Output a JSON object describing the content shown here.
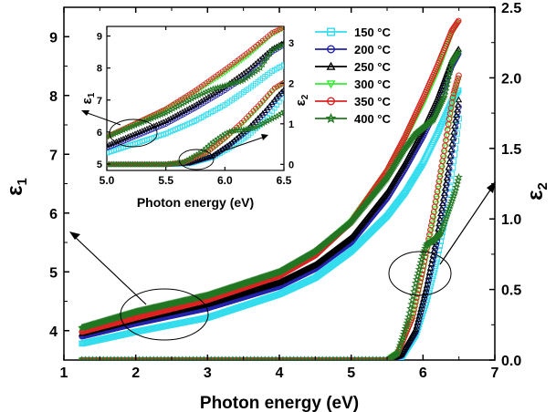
{
  "chart_data": {
    "type": "scatter",
    "main": {
      "xlabel": "Photon energy (eV)",
      "ylabel_left": "ε",
      "ylabel_left_sub": "1",
      "ylabel_right": "ε",
      "ylabel_right_sub": "2",
      "xlim": [
        1,
        7
      ],
      "ylim_left": [
        3.5,
        9.5
      ],
      "ylim_right": [
        0,
        2.5
      ],
      "xticks": [
        "1",
        "2",
        "3",
        "4",
        "5",
        "6",
        "7"
      ],
      "yticks_left": [
        "4",
        "5",
        "6",
        "7",
        "8",
        "9"
      ],
      "yticks_right": [
        "0.0",
        "0.5",
        "1.0",
        "1.5",
        "2.0",
        "2.5"
      ],
      "series": [
        {
          "name": "150 °C",
          "color": "#33ddee",
          "marker": "square",
          "e1": [
            [
              1.25,
              3.78
            ],
            [
              2,
              3.98
            ],
            [
              3,
              4.22
            ],
            [
              4,
              4.62
            ],
            [
              4.5,
              4.9
            ],
            [
              5,
              5.35
            ],
            [
              5.5,
              5.95
            ],
            [
              5.75,
              6.35
            ],
            [
              6,
              6.85
            ],
            [
              6.2,
              7.35
            ],
            [
              6.4,
              7.9
            ],
            [
              6.5,
              8.1
            ]
          ],
          "e2": [
            [
              1.25,
              0
            ],
            [
              5.5,
              0
            ],
            [
              5.7,
              0.02
            ],
            [
              5.9,
              0.18
            ],
            [
              6.05,
              0.42
            ],
            [
              6.2,
              0.72
            ],
            [
              6.35,
              1.12
            ],
            [
              6.45,
              1.5
            ],
            [
              6.5,
              1.72
            ]
          ]
        },
        {
          "name": "200 °C",
          "color": "#2222aa",
          "marker": "circle",
          "e1": [
            [
              1.25,
              3.9
            ],
            [
              2,
              4.12
            ],
            [
              3,
              4.38
            ],
            [
              4,
              4.75
            ],
            [
              4.5,
              5.05
            ],
            [
              5,
              5.5
            ],
            [
              5.5,
              6.25
            ],
            [
              5.75,
              6.75
            ],
            [
              6,
              7.3
            ],
            [
              6.2,
              7.8
            ],
            [
              6.4,
              8.5
            ],
            [
              6.5,
              8.72
            ]
          ],
          "e2": [
            [
              1.25,
              0
            ],
            [
              5.5,
              0
            ],
            [
              5.7,
              0.03
            ],
            [
              5.9,
              0.2
            ],
            [
              6.05,
              0.5
            ],
            [
              6.2,
              0.85
            ],
            [
              6.35,
              1.3
            ],
            [
              6.45,
              1.65
            ],
            [
              6.5,
              1.8
            ]
          ]
        },
        {
          "name": "250 °C",
          "color": "#000000",
          "marker": "triangle",
          "e1": [
            [
              1.25,
              3.95
            ],
            [
              2,
              4.18
            ],
            [
              3,
              4.45
            ],
            [
              4,
              4.82
            ],
            [
              4.5,
              5.12
            ],
            [
              5,
              5.58
            ],
            [
              5.5,
              6.35
            ],
            [
              5.75,
              6.85
            ],
            [
              6,
              7.42
            ],
            [
              6.2,
              7.95
            ],
            [
              6.4,
              8.6
            ],
            [
              6.5,
              8.8
            ]
          ],
          "e2": [
            [
              1.25,
              0
            ],
            [
              5.5,
              0
            ],
            [
              5.7,
              0.04
            ],
            [
              5.9,
              0.22
            ],
            [
              6.05,
              0.52
            ],
            [
              6.2,
              0.9
            ],
            [
              6.35,
              1.35
            ],
            [
              6.45,
              1.7
            ],
            [
              6.5,
              1.85
            ]
          ]
        },
        {
          "name": "300 °C",
          "color": "#33ee33",
          "marker": "triangle-down",
          "e1": [
            [
              1.25,
              4.02
            ],
            [
              2,
              4.28
            ],
            [
              3,
              4.55
            ],
            [
              4,
              4.95
            ],
            [
              4.5,
              5.3
            ],
            [
              5,
              5.85
            ],
            [
              5.5,
              6.7
            ],
            [
              5.75,
              7.25
            ],
            [
              6,
              7.85
            ],
            [
              6.2,
              8.4
            ],
            [
              6.4,
              9.05
            ],
            [
              6.5,
              9.25
            ]
          ],
          "e2": [
            [
              1.25,
              0
            ],
            [
              5.5,
              0
            ],
            [
              5.65,
              0.05
            ],
            [
              5.85,
              0.28
            ],
            [
              6,
              0.62
            ],
            [
              6.15,
              1
            ],
            [
              6.3,
              1.45
            ],
            [
              6.42,
              1.85
            ],
            [
              6.5,
              2.0
            ]
          ]
        },
        {
          "name": "350 °C",
          "color": "#dd2222",
          "marker": "circle",
          "e1": [
            [
              1.25,
              3.98
            ],
            [
              2,
              4.22
            ],
            [
              3,
              4.52
            ],
            [
              4,
              4.93
            ],
            [
              4.5,
              5.28
            ],
            [
              5,
              5.85
            ],
            [
              5.5,
              6.72
            ],
            [
              5.75,
              7.3
            ],
            [
              6,
              7.95
            ],
            [
              6.2,
              8.5
            ],
            [
              6.4,
              9.1
            ],
            [
              6.5,
              9.28
            ]
          ],
          "e2": [
            [
              1.25,
              0
            ],
            [
              5.5,
              0
            ],
            [
              5.65,
              0.05
            ],
            [
              5.85,
              0.3
            ],
            [
              6,
              0.65
            ],
            [
              6.15,
              1.05
            ],
            [
              6.3,
              1.5
            ],
            [
              6.42,
              1.88
            ],
            [
              6.5,
              2.02
            ]
          ]
        },
        {
          "name": "400 °C",
          "color": "#227722",
          "marker": "star",
          "e1": [
            [
              1.25,
              4.05
            ],
            [
              2,
              4.32
            ],
            [
              3,
              4.6
            ],
            [
              4,
              5.0
            ],
            [
              4.5,
              5.35
            ],
            [
              5,
              5.85
            ],
            [
              5.5,
              6.6
            ],
            [
              5.75,
              7.1
            ],
            [
              5.9,
              7.35
            ],
            [
              6.0,
              7.45
            ],
            [
              6.15,
              7.6
            ],
            [
              6.3,
              8.0
            ],
            [
              6.4,
              8.55
            ],
            [
              6.5,
              8.75
            ]
          ],
          "e2": [
            [
              1.25,
              0
            ],
            [
              5.5,
              0
            ],
            [
              5.65,
              0.05
            ],
            [
              5.8,
              0.3
            ],
            [
              5.9,
              0.55
            ],
            [
              6.0,
              0.75
            ],
            [
              6.05,
              0.82
            ],
            [
              6.15,
              0.85
            ],
            [
              6.25,
              0.9
            ],
            [
              6.35,
              1.05
            ],
            [
              6.45,
              1.2
            ],
            [
              6.5,
              1.3
            ]
          ]
        }
      ]
    },
    "inset": {
      "xlabel": "Photon energy (eV)",
      "ylabel_left": "ε",
      "ylabel_left_sub": "1",
      "ylabel_right": "ε",
      "ylabel_right_sub": "2",
      "xlim": [
        5.0,
        6.5
      ],
      "ylim_left": [
        4.8,
        9.3
      ],
      "ylim_right": [
        -0.15,
        3.4
      ],
      "xticks": [
        "5.0",
        "5.5",
        "6.0",
        "6.5"
      ],
      "yticks_left": [
        "5",
        "6",
        "7",
        "8",
        "9"
      ],
      "yticks_right": [
        "0",
        "1",
        "2",
        "3"
      ]
    }
  }
}
